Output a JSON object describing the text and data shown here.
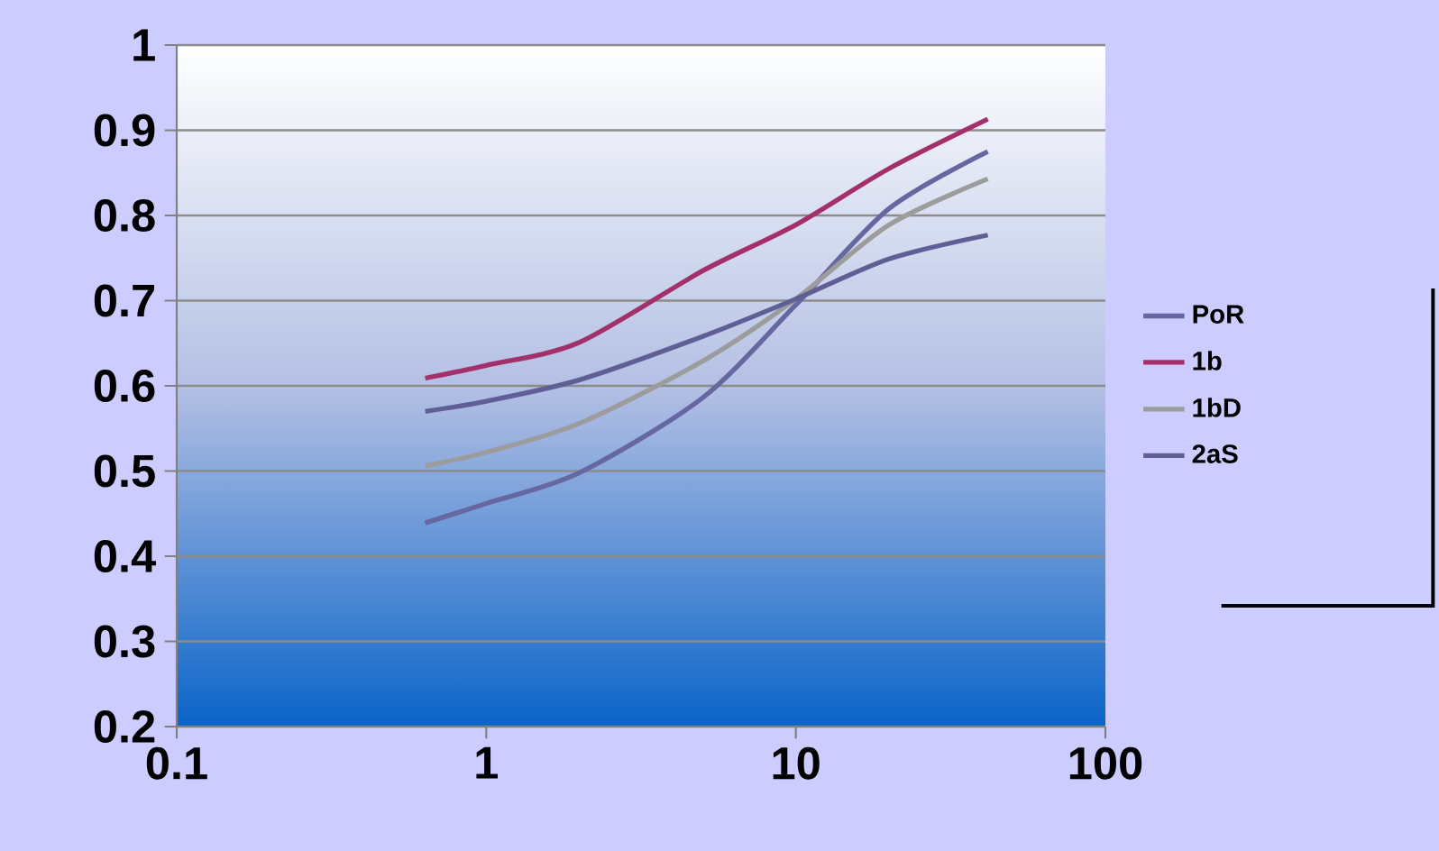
{
  "chart_data": {
    "type": "line",
    "log": "x",
    "grid": "y",
    "legend": "right",
    "xlim": [
      0.1,
      100
    ],
    "xticks": [
      0.1,
      1,
      10,
      100
    ],
    "ylim": [
      0.2,
      1
    ],
    "yticks": [
      0.2,
      0.3,
      0.4,
      0.5,
      0.6,
      0.7,
      0.8,
      0.9,
      1
    ],
    "x": [
      0.635,
      1,
      2,
      5,
      10,
      20,
      41.7
    ],
    "series": [
      {
        "name": "PoR",
        "color": "#6666a0",
        "values": [
          0.439,
          0.462,
          0.498,
          0.586,
          0.695,
          0.808,
          0.875
        ]
      },
      {
        "name": "1b",
        "color": "#a3306a",
        "values": [
          0.609,
          0.624,
          0.651,
          0.735,
          0.789,
          0.855,
          0.913
        ]
      },
      {
        "name": "1bD",
        "color": "#9c9c9c",
        "values": [
          0.506,
          0.522,
          0.556,
          0.629,
          0.702,
          0.789,
          0.843
        ]
      },
      {
        "name": "2aS",
        "color": "#5f5f96",
        "values": [
          0.57,
          0.582,
          0.607,
          0.658,
          0.702,
          0.749,
          0.777
        ]
      }
    ]
  }
}
